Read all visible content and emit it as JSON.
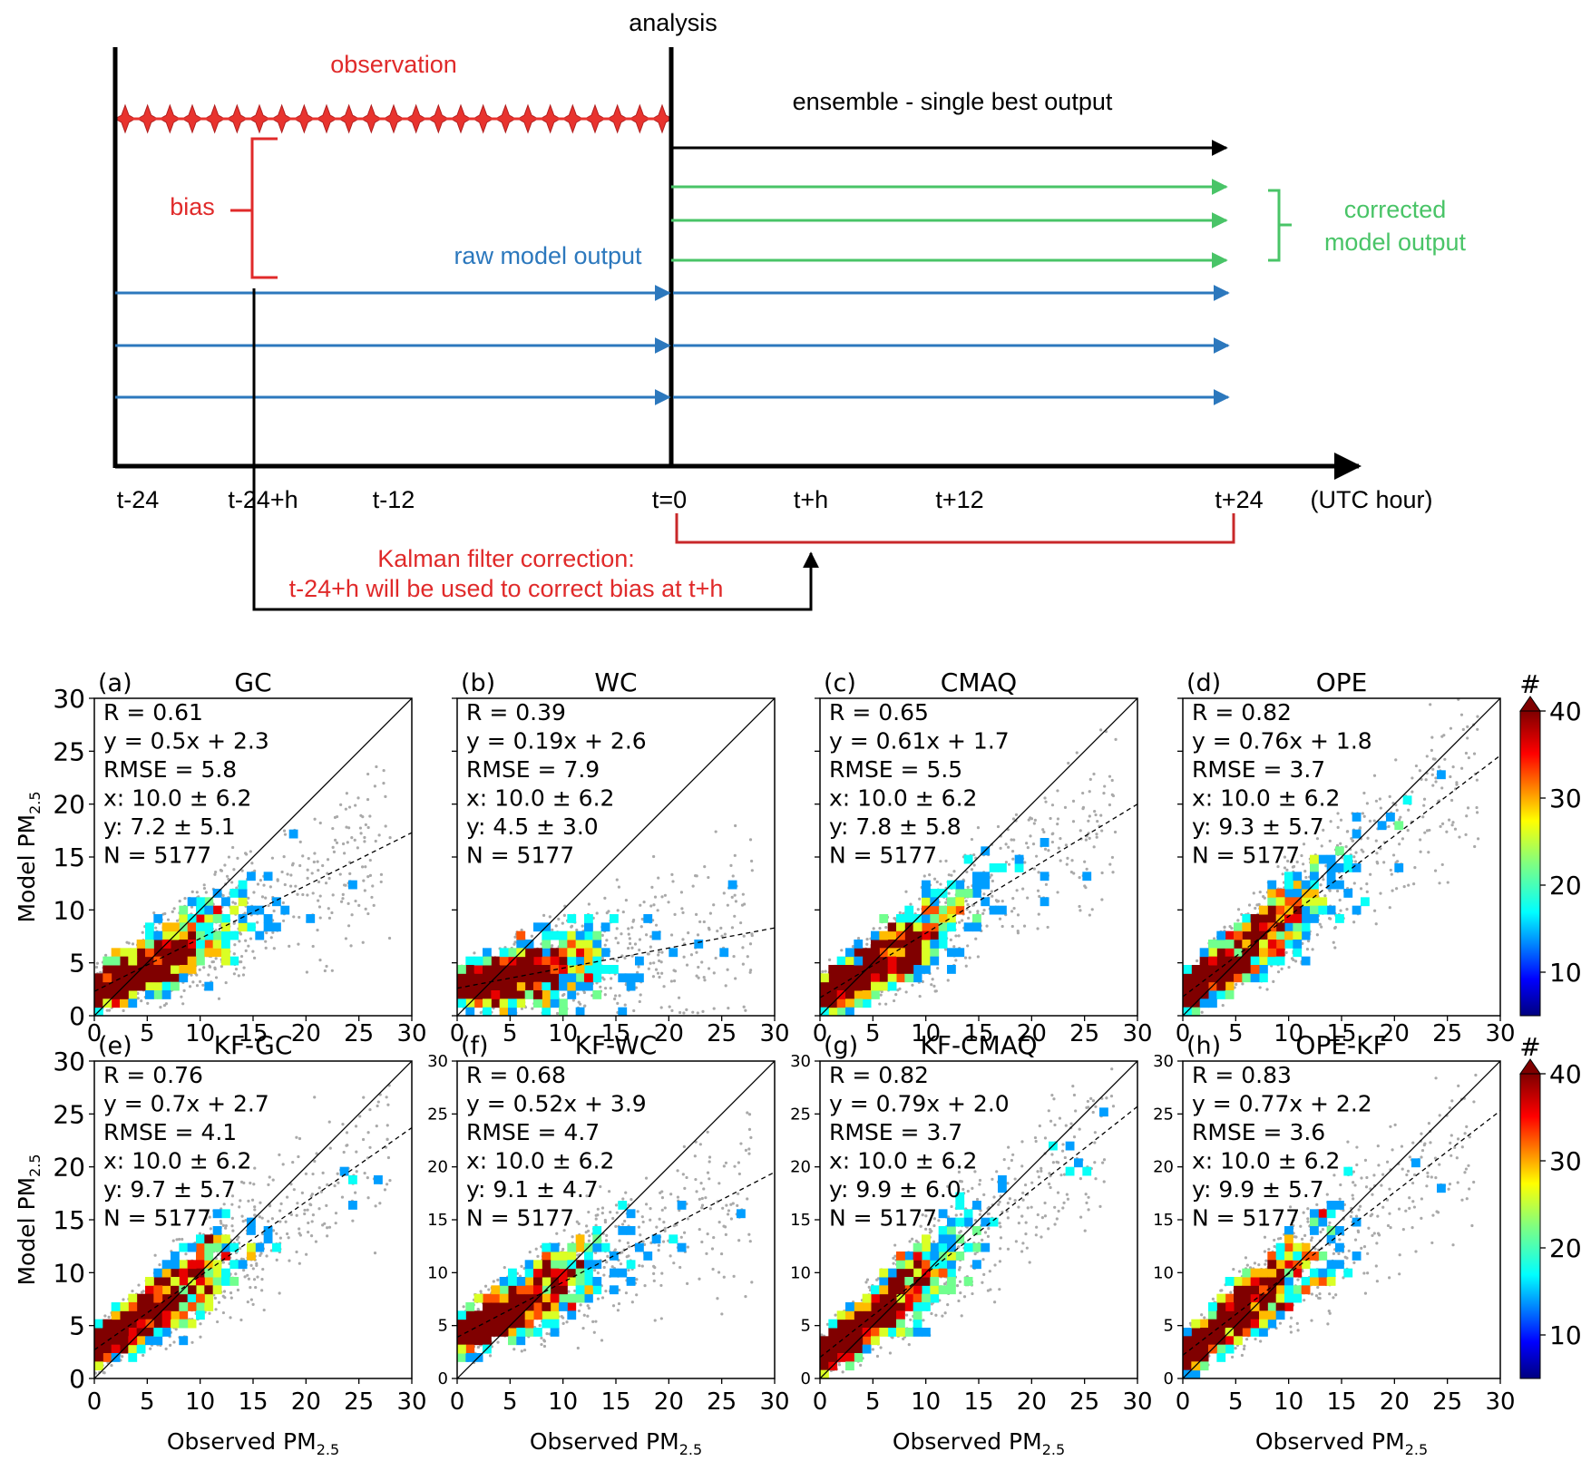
{
  "timeline": {
    "analysis_label": "analysis",
    "observation_label": "observation",
    "bias_label": "bias",
    "raw_label": "raw model output",
    "ensemble_label": "ensemble - single best output",
    "corrected_label_1": "corrected",
    "corrected_label_2": "model output",
    "axis_ticks": [
      "t-24",
      "t-24+h",
      "t-12",
      "t=0",
      "t+h",
      "t+12",
      "t+24"
    ],
    "axis_unit": "(UTC hour)",
    "kf_label_1": "Kalman filter correction:",
    "kf_label_2": "t-24+h will be used to correct bias at t+h",
    "colors": {
      "observation": "#e02a2a",
      "raw": "#2c78bd",
      "corrected": "#49c467",
      "ensemble": "#000000",
      "bias": "#e02a2a"
    }
  },
  "chart_data": [
    {
      "type": "heatmap",
      "panel": "(a)",
      "title": "GC",
      "stats": [
        "R = 0.61",
        "y = 0.5x + 2.3",
        "RMSE = 5.8",
        "x: 10.0 ± 6.2",
        "y: 7.2 ± 5.1",
        "N = 5177"
      ],
      "fit": {
        "slope": 0.5,
        "intercept": 2.3
      },
      "xlim": [
        0,
        30
      ],
      "ylim": [
        0,
        30
      ]
    },
    {
      "type": "heatmap",
      "panel": "(b)",
      "title": "WC",
      "stats": [
        "R = 0.39",
        "y = 0.19x + 2.6",
        "RMSE = 7.9",
        "x: 10.0 ± 6.2",
        "y: 4.5 ± 3.0",
        "N = 5177"
      ],
      "fit": {
        "slope": 0.19,
        "intercept": 2.6
      },
      "xlim": [
        0,
        30
      ],
      "ylim": [
        0,
        30
      ]
    },
    {
      "type": "heatmap",
      "panel": "(c)",
      "title": "CMAQ",
      "stats": [
        "R = 0.65",
        "y = 0.61x + 1.7",
        "RMSE = 5.5",
        "x: 10.0 ± 6.2",
        "y: 7.8 ± 5.8",
        "N = 5177"
      ],
      "fit": {
        "slope": 0.61,
        "intercept": 1.7
      },
      "xlim": [
        0,
        30
      ],
      "ylim": [
        0,
        30
      ]
    },
    {
      "type": "heatmap",
      "panel": "(d)",
      "title": "OPE",
      "stats": [
        "R = 0.82",
        "y = 0.76x + 1.8",
        "RMSE = 3.7",
        "x: 10.0 ± 6.2",
        "y: 9.3 ± 5.7",
        "N = 5177"
      ],
      "fit": {
        "slope": 0.76,
        "intercept": 1.8
      },
      "xlim": [
        0,
        30
      ],
      "ylim": [
        0,
        30
      ]
    },
    {
      "type": "heatmap",
      "panel": "(e)",
      "title": "KF-GC",
      "stats": [
        "R = 0.76",
        "y = 0.7x + 2.7",
        "RMSE = 4.1",
        "x: 10.0 ± 6.2",
        "y: 9.7 ± 5.7",
        "N = 5177"
      ],
      "fit": {
        "slope": 0.7,
        "intercept": 2.7
      },
      "xlim": [
        0,
        30
      ],
      "ylim": [
        0,
        30
      ]
    },
    {
      "type": "heatmap",
      "panel": "(f)",
      "title": "KF-WC",
      "stats": [
        "R = 0.68",
        "y = 0.52x + 3.9",
        "RMSE = 4.7",
        "x: 10.0 ± 6.2",
        "y: 9.1 ± 4.7",
        "N = 5177"
      ],
      "fit": {
        "slope": 0.52,
        "intercept": 3.9
      },
      "xlim": [
        0,
        30
      ],
      "ylim": [
        0,
        30
      ]
    },
    {
      "type": "heatmap",
      "panel": "(g)",
      "title": "KF-CMAQ",
      "stats": [
        "R = 0.82",
        "y = 0.79x + 2.0",
        "RMSE = 3.7",
        "x: 10.0 ± 6.2",
        "y: 9.9 ± 6.0",
        "N = 5177"
      ],
      "fit": {
        "slope": 0.79,
        "intercept": 2.0
      },
      "xlim": [
        0,
        30
      ],
      "ylim": [
        0,
        30
      ]
    },
    {
      "type": "heatmap",
      "panel": "(h)",
      "title": "OPE-KF",
      "stats": [
        "R = 0.83",
        "y = 0.77x + 2.2",
        "RMSE = 3.6",
        "x: 10.0 ± 6.2",
        "y: 9.9 ± 5.7",
        "N = 5177"
      ],
      "fit": {
        "slope": 0.77,
        "intercept": 2.2
      },
      "xlim": [
        0,
        30
      ],
      "ylim": [
        0,
        30
      ]
    }
  ],
  "axes": {
    "xlabel": "Observed PM",
    "ylabel": "Model PM",
    "subscript": "2.5",
    "ticks": [
      "0",
      "5",
      "10",
      "15",
      "20",
      "25",
      "30"
    ]
  },
  "colorbar": {
    "label": "#",
    "ticks": [
      "10",
      "20",
      "30",
      "40"
    ],
    "range": [
      5,
      40
    ],
    "colors": [
      "#00007f",
      "#0000ff",
      "#0080ff",
      "#00ffff",
      "#80ff80",
      "#ffff00",
      "#ff8000",
      "#ff0000",
      "#7f0000"
    ]
  }
}
